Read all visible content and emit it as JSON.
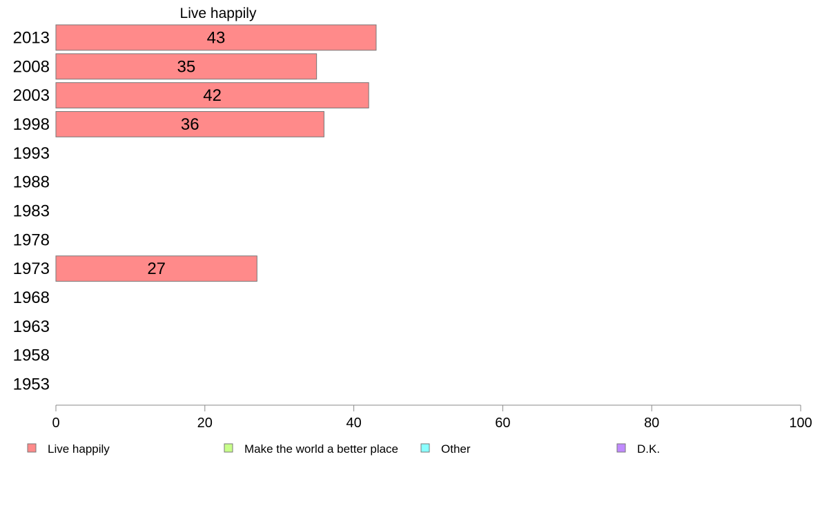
{
  "chart_data": {
    "type": "bar",
    "orientation": "horizontal",
    "categories": [
      "2013",
      "2008",
      "2003",
      "1998",
      "1993",
      "1988",
      "1983",
      "1978",
      "1973",
      "1968",
      "1963",
      "1958",
      "1953"
    ],
    "series": [
      {
        "name": "Live happily",
        "color": "#ff8a8a",
        "values": [
          43,
          35,
          42,
          36,
          null,
          null,
          null,
          null,
          27,
          null,
          null,
          null,
          null
        ]
      }
    ],
    "panel_title": "Live happily",
    "xlim": [
      0,
      100
    ],
    "xticks": [
      0,
      20,
      40,
      60,
      80,
      100
    ],
    "grid": false,
    "legend": {
      "placement": "bottom",
      "items": [
        {
          "label": "Live happily",
          "color": "#ff8a8a"
        },
        {
          "label": "Make the world a better place",
          "color": "#c8ff8a"
        },
        {
          "label": "Other",
          "color": "#8affff"
        },
        {
          "label": "D.K.",
          "color": "#c08aff"
        }
      ]
    }
  }
}
